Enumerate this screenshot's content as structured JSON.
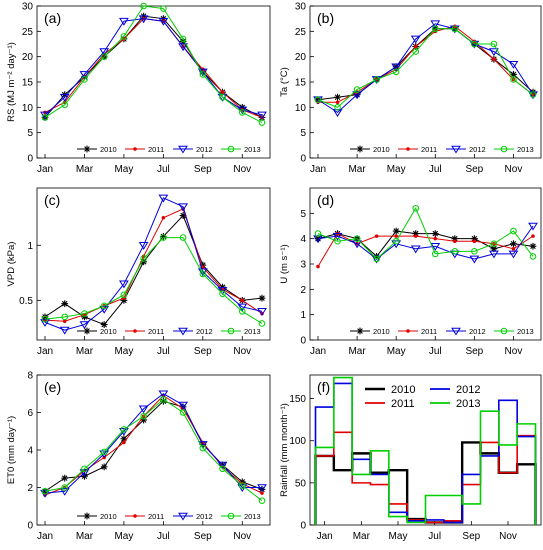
{
  "months_ticks": [
    "Jan",
    "Mar",
    "May",
    "Jul",
    "Sep",
    "Nov"
  ],
  "chart_data": [
    {
      "type": "line",
      "panel_label": "(a)",
      "ylabel": "RS (MJ m⁻² day⁻¹)",
      "ylim": [
        0,
        30
      ],
      "yticks": [
        0,
        5,
        10,
        15,
        20,
        25,
        30
      ],
      "x": [
        1,
        2,
        3,
        4,
        5,
        6,
        7,
        8,
        9,
        10,
        11,
        12
      ],
      "legend": "bottom-center",
      "series": [
        {
          "name": "2010",
          "color": "#000000",
          "marker": "star",
          "values": [
            8,
            12.5,
            16,
            20,
            23.5,
            28,
            27.5,
            23,
            17,
            13,
            10,
            8
          ]
        },
        {
          "name": "2011",
          "color": "#e00000",
          "marker": "dot",
          "values": [
            9,
            11,
            16,
            20.5,
            23.5,
            27.5,
            27,
            22,
            17.5,
            13,
            9.5,
            8
          ]
        },
        {
          "name": "2012",
          "color": "#0000e0",
          "marker": "tri",
          "values": [
            8.5,
            12,
            16.5,
            21,
            27,
            27.5,
            27,
            22,
            17,
            12,
            9.5,
            8.5
          ]
        },
        {
          "name": "2013",
          "color": "#00d000",
          "marker": "circle",
          "values": [
            8,
            10.5,
            15.5,
            20,
            24,
            30,
            29.5,
            23.5,
            16.5,
            12,
            9,
            7
          ]
        }
      ]
    },
    {
      "type": "line",
      "panel_label": "(b)",
      "ylabel": "Ta (°C)",
      "ylim": [
        0,
        30
      ],
      "yticks": [
        0,
        5,
        10,
        15,
        20,
        25,
        30
      ],
      "x": [
        1,
        2,
        3,
        4,
        5,
        6,
        7,
        8,
        9,
        10,
        11,
        12
      ],
      "legend": "bottom-center",
      "series": [
        {
          "name": "2010",
          "color": "#000000",
          "marker": "star",
          "values": [
            11.5,
            12,
            12.5,
            15.5,
            18,
            22,
            25.5,
            25.5,
            22.5,
            19.5,
            16.5,
            13
          ]
        },
        {
          "name": "2011",
          "color": "#e00000",
          "marker": "dot",
          "values": [
            11,
            11,
            13,
            15.5,
            17.5,
            22,
            25,
            26,
            23,
            19.5,
            15.5,
            12.5
          ]
        },
        {
          "name": "2012",
          "color": "#0000e0",
          "marker": "tri",
          "values": [
            11.5,
            9,
            12.5,
            15.5,
            18,
            23.5,
            26.5,
            25.5,
            22.5,
            21,
            18.5,
            12.5
          ]
        },
        {
          "name": "2013",
          "color": "#00d000",
          "marker": "circle",
          "values": [
            11.5,
            10,
            13.5,
            15.5,
            17,
            21,
            25.5,
            25.5,
            22.5,
            22.5,
            15.5,
            12.5
          ]
        }
      ]
    },
    {
      "type": "line",
      "panel_label": "(c)",
      "ylabel": "VPD (kPa)",
      "ylim": [
        0.14,
        1.52
      ],
      "yticks": [
        0.5,
        1.0
      ],
      "x": [
        1,
        2,
        3,
        4,
        5,
        6,
        7,
        8,
        9,
        10,
        11,
        12
      ],
      "legend": "bottom-center",
      "series": [
        {
          "name": "2010",
          "color": "#000000",
          "marker": "star",
          "values": [
            0.35,
            0.47,
            0.35,
            0.28,
            0.5,
            0.85,
            1.08,
            1.27,
            0.82,
            0.62,
            0.5,
            0.52
          ]
        },
        {
          "name": "2011",
          "color": "#e00000",
          "marker": "dot",
          "values": [
            0.32,
            0.31,
            0.37,
            0.45,
            0.52,
            0.9,
            1.25,
            1.33,
            0.8,
            0.6,
            0.5,
            0.38
          ]
        },
        {
          "name": "2012",
          "color": "#0000e0",
          "marker": "tri",
          "values": [
            0.3,
            0.23,
            0.28,
            0.42,
            0.65,
            1.0,
            1.43,
            1.35,
            0.76,
            0.59,
            0.44,
            0.4
          ]
        },
        {
          "name": "2013",
          "color": "#00d000",
          "marker": "circle",
          "values": [
            0.33,
            0.35,
            0.38,
            0.45,
            0.55,
            0.88,
            1.07,
            1.07,
            0.74,
            0.56,
            0.4,
            0.29
          ]
        }
      ]
    },
    {
      "type": "line",
      "panel_label": "(d)",
      "ylabel": "U (m s⁻¹)",
      "ylim": [
        0,
        6
      ],
      "yticks": [
        0,
        1,
        2,
        3,
        4,
        5
      ],
      "x": [
        1,
        2,
        3,
        4,
        5,
        6,
        7,
        8,
        9,
        10,
        11,
        12
      ],
      "legend": "bottom-center",
      "series": [
        {
          "name": "2010",
          "color": "#000000",
          "marker": "star",
          "values": [
            4.0,
            4.2,
            4.0,
            3.3,
            4.3,
            4.2,
            4.2,
            4.0,
            4.0,
            3.6,
            3.8,
            3.7
          ]
        },
        {
          "name": "2011",
          "color": "#e00000",
          "marker": "dot",
          "values": [
            2.9,
            4.2,
            3.8,
            4.1,
            4.1,
            4.1,
            4.0,
            3.9,
            3.9,
            3.8,
            3.6,
            4.1
          ]
        },
        {
          "name": "2012",
          "color": "#0000e0",
          "marker": "tri",
          "values": [
            4.0,
            4.1,
            3.8,
            3.2,
            3.8,
            3.6,
            3.7,
            3.4,
            3.2,
            3.4,
            3.4,
            4.5
          ]
        },
        {
          "name": "2013",
          "color": "#00d000",
          "marker": "circle",
          "values": [
            4.2,
            3.9,
            4.0,
            3.2,
            3.9,
            5.2,
            3.4,
            3.5,
            3.5,
            3.8,
            4.3,
            3.3
          ]
        }
      ]
    },
    {
      "type": "line",
      "panel_label": "(e)",
      "ylabel": "ET0 (mm day⁻¹)",
      "ylim": [
        0,
        8
      ],
      "yticks": [
        0,
        2,
        4,
        6,
        8
      ],
      "x": [
        1,
        2,
        3,
        4,
        5,
        6,
        7,
        8,
        9,
        10,
        11,
        12
      ],
      "legend": "bottom-center",
      "series": [
        {
          "name": "2010",
          "color": "#000000",
          "marker": "star",
          "values": [
            1.8,
            2.5,
            2.6,
            3.1,
            4.6,
            5.6,
            6.6,
            6.3,
            4.3,
            3.2,
            2.3,
            1.9
          ]
        },
        {
          "name": "2011",
          "color": "#e00000",
          "marker": "dot",
          "values": [
            1.6,
            2.0,
            2.9,
            3.6,
            4.4,
            5.8,
            6.9,
            6.2,
            4.4,
            3.1,
            2.2,
            1.7
          ]
        },
        {
          "name": "2012",
          "color": "#0000e0",
          "marker": "tri",
          "values": [
            1.7,
            1.8,
            2.8,
            3.8,
            5.0,
            6.2,
            7.0,
            6.4,
            4.3,
            3.2,
            2.0,
            2.0
          ]
        },
        {
          "name": "2013",
          "color": "#00d000",
          "marker": "circle",
          "values": [
            1.8,
            2.0,
            3.0,
            3.9,
            5.1,
            5.8,
            6.7,
            6.0,
            4.1,
            3.0,
            2.1,
            1.3
          ]
        }
      ]
    },
    {
      "type": "step",
      "panel_label": "(f)",
      "ylabel": "Rainfall  (mm month⁻¹)",
      "ylim": [
        0,
        178
      ],
      "yticks": [
        0,
        50,
        100,
        150
      ],
      "x": [
        1,
        2,
        3,
        4,
        5,
        6,
        7,
        8,
        9,
        10,
        11,
        12
      ],
      "legend": "top-center",
      "series": [
        {
          "name": "2010",
          "color": "#000000",
          "values": [
            82,
            65,
            85,
            62,
            65,
            7,
            3,
            3,
            98,
            85,
            62,
            72
          ]
        },
        {
          "name": "2011",
          "color": "#e00000",
          "values": [
            82,
            110,
            50,
            48,
            25,
            6,
            3,
            5,
            48,
            98,
            62,
            106
          ]
        },
        {
          "name": "2012",
          "color": "#0000e0",
          "values": [
            140,
            168,
            78,
            60,
            15,
            5,
            6,
            3,
            60,
            82,
            148,
            105
          ]
        },
        {
          "name": "2013",
          "color": "#00d000",
          "values": [
            92,
            175,
            60,
            88,
            10,
            3,
            35,
            35,
            25,
            135,
            95,
            120
          ]
        }
      ]
    }
  ]
}
